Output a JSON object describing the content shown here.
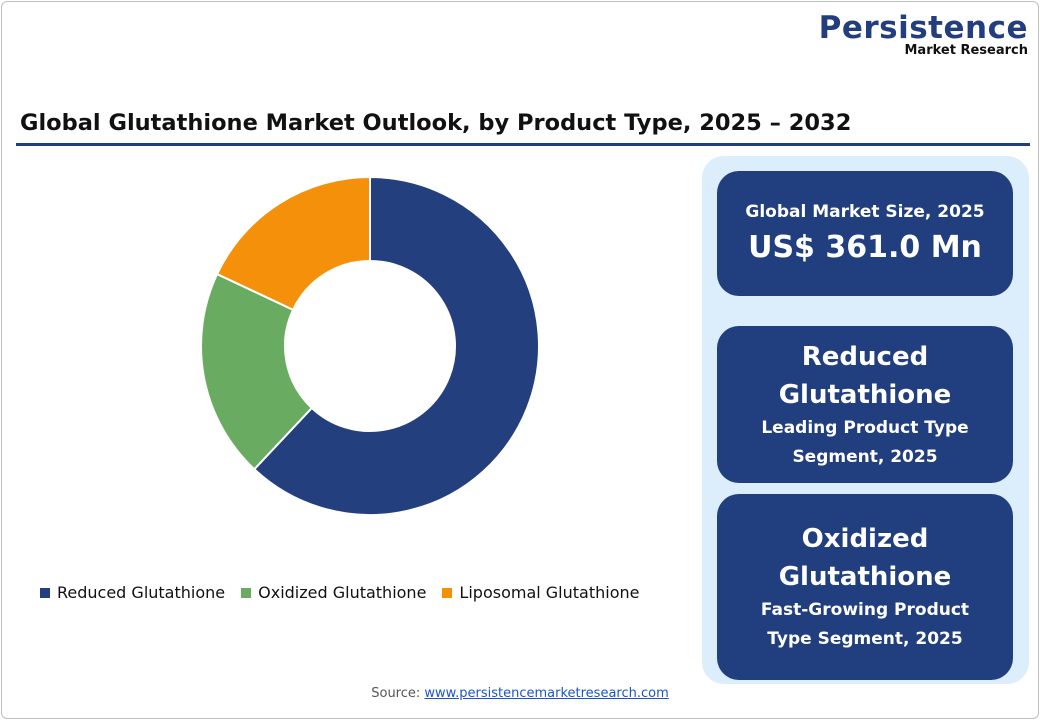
{
  "logo": {
    "line1": "Persistence",
    "line2": "Market Research"
  },
  "chart_data": {
    "type": "pie",
    "variant": "donut",
    "title": "Global Glutathione Market Outlook, by Product Type, 2025 – 2032",
    "categories": [
      "Reduced Glutathione",
      "Oxidized Glutathione",
      "Liposomal Glutathione"
    ],
    "values": [
      62,
      20,
      18
    ],
    "colors": [
      "#233f7e",
      "#6aab62",
      "#f5900a"
    ],
    "legend_position": "bottom"
  },
  "cards": [
    {
      "line1": "Global Market Size, 2025",
      "line2": "US$ 361.0 Mn"
    },
    {
      "title1": "Reduced",
      "title2": "Glutathione",
      "sub1": "Leading Product Type",
      "sub2": "Segment, 2025"
    },
    {
      "title1": "Oxidized",
      "title2": "Glutathione",
      "sub1": "Fast-Growing Product",
      "sub2": "Type Segment, 2025"
    }
  ],
  "source": {
    "label": "Source:",
    "link": "www.persistencemarketresearch.com"
  }
}
